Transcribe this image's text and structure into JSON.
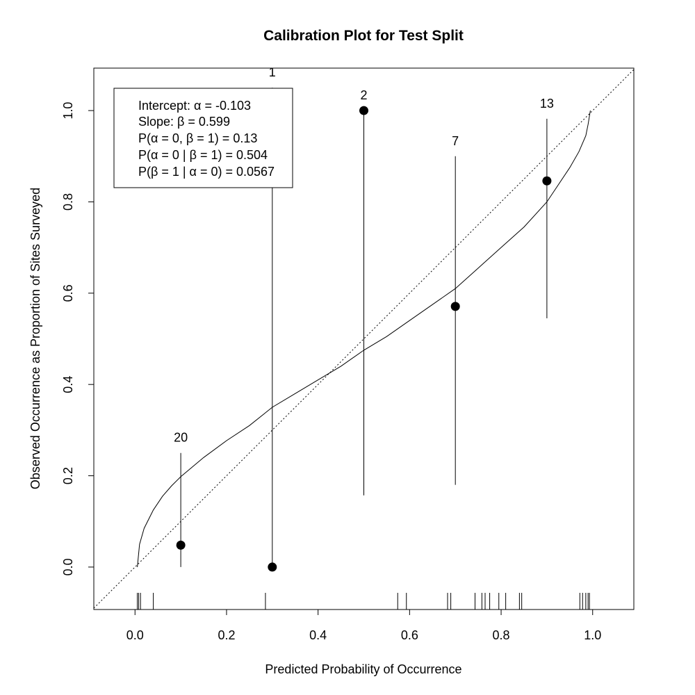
{
  "chart_data": {
    "type": "scatter",
    "title": "Calibration Plot for Test Split",
    "xlabel": "Predicted Probability of Occurrence",
    "ylabel": "Observed Occurrence as Proportion of Sites Surveyed",
    "xlim": [
      -0.09,
      1.09
    ],
    "ylim": [
      -0.093,
      1.093
    ],
    "x_ticks": [
      "0.0",
      "0.2",
      "0.4",
      "0.6",
      "0.8",
      "1.0"
    ],
    "y_ticks": [
      "0.0",
      "0.2",
      "0.4",
      "0.6",
      "0.8",
      "1.0"
    ],
    "grid": false,
    "points": [
      {
        "x": 0.1,
        "y": 0.048,
        "lower": 0.0,
        "upper": 0.25,
        "count": "20"
      },
      {
        "x": 0.3,
        "y": 0.0,
        "lower": 0.0,
        "upper": 1.05,
        "count": "1"
      },
      {
        "x": 0.5,
        "y": 1.0,
        "lower": 0.157,
        "upper": 1.0,
        "count": "2"
      },
      {
        "x": 0.7,
        "y": 0.571,
        "lower": 0.18,
        "upper": 0.9,
        "count": "7"
      },
      {
        "x": 0.9,
        "y": 0.846,
        "lower": 0.545,
        "upper": 0.982,
        "count": "13"
      }
    ],
    "reference_line": {
      "intercept": 0,
      "slope": 1,
      "style": "dotted"
    },
    "calibration_curve": [
      [
        0.005,
        0.0
      ],
      [
        0.01,
        0.05
      ],
      [
        0.02,
        0.085
      ],
      [
        0.04,
        0.125
      ],
      [
        0.06,
        0.155
      ],
      [
        0.08,
        0.178
      ],
      [
        0.1,
        0.198
      ],
      [
        0.15,
        0.24
      ],
      [
        0.2,
        0.277
      ],
      [
        0.25,
        0.31
      ],
      [
        0.3,
        0.35
      ],
      [
        0.35,
        0.38
      ],
      [
        0.4,
        0.41
      ],
      [
        0.45,
        0.44
      ],
      [
        0.5,
        0.475
      ],
      [
        0.55,
        0.505
      ],
      [
        0.6,
        0.54
      ],
      [
        0.65,
        0.575
      ],
      [
        0.7,
        0.61
      ],
      [
        0.75,
        0.655
      ],
      [
        0.8,
        0.7
      ],
      [
        0.85,
        0.745
      ],
      [
        0.9,
        0.8
      ],
      [
        0.95,
        0.875
      ],
      [
        0.97,
        0.91
      ],
      [
        0.985,
        0.945
      ],
      [
        0.99,
        0.97
      ],
      [
        0.995,
        1.0
      ]
    ],
    "rug": [
      0.005,
      0.008,
      0.012,
      0.04,
      0.285,
      0.574,
      0.593,
      0.683,
      0.69,
      0.743,
      0.758,
      0.765,
      0.775,
      0.795,
      0.81,
      0.84,
      0.845,
      0.972,
      0.978,
      0.985,
      0.99,
      0.993
    ],
    "legend": {
      "position": "top-left",
      "lines": [
        "Intercept:  α = -0.103",
        "Slope:  β = 0.599",
        "P(α = 0, β = 1) = 0.13",
        "P(α = 0 | β = 1) = 0.504",
        "P(β = 1 | α = 0) = 0.0567"
      ]
    }
  }
}
